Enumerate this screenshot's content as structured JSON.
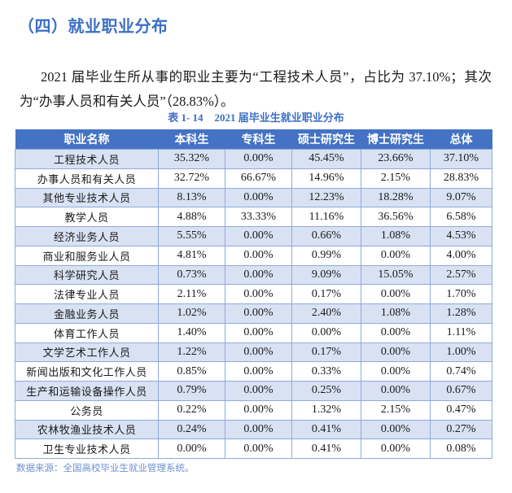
{
  "section": {
    "heading": "（四）就业职业分布"
  },
  "paragraph": {
    "text": "2021 届毕业生所从事的职业主要为“工程技术人员”，占比为 37.10%；其次为“办事人员和有关人员”（28.83%）。"
  },
  "table": {
    "caption_number": "表 1- 14",
    "caption_title": "2021 届毕业生就业职业分布",
    "columns": [
      "职业名称",
      "本科生",
      "专科生",
      "硕士研究生",
      "博士研究生",
      "总体"
    ],
    "rows": [
      [
        "工程技术人员",
        "35.32%",
        "0.00%",
        "45.45%",
        "23.66%",
        "37.10%"
      ],
      [
        "办事人员和有关人员",
        "32.72%",
        "66.67%",
        "14.96%",
        "2.15%",
        "28.83%"
      ],
      [
        "其他专业技术人员",
        "8.13%",
        "0.00%",
        "12.23%",
        "18.28%",
        "9.07%"
      ],
      [
        "教学人员",
        "4.88%",
        "33.33%",
        "11.16%",
        "36.56%",
        "6.58%"
      ],
      [
        "经济业务人员",
        "5.55%",
        "0.00%",
        "0.66%",
        "1.08%",
        "4.53%"
      ],
      [
        "商业和服务业人员",
        "4.81%",
        "0.00%",
        "0.99%",
        "0.00%",
        "4.00%"
      ],
      [
        "科学研究人员",
        "0.73%",
        "0.00%",
        "9.09%",
        "15.05%",
        "2.57%"
      ],
      [
        "法律专业人员",
        "2.11%",
        "0.00%",
        "0.17%",
        "0.00%",
        "1.70%"
      ],
      [
        "金融业务人员",
        "1.02%",
        "0.00%",
        "2.40%",
        "1.08%",
        "1.28%"
      ],
      [
        "体育工作人员",
        "1.40%",
        "0.00%",
        "0.00%",
        "0.00%",
        "1.11%"
      ],
      [
        "文学艺术工作人员",
        "1.22%",
        "0.00%",
        "0.17%",
        "0.00%",
        "1.00%"
      ],
      [
        "新闻出版和文化工作人员",
        "0.85%",
        "0.00%",
        "0.33%",
        "0.00%",
        "0.74%"
      ],
      [
        "生产和运输设备操作人员",
        "0.79%",
        "0.00%",
        "0.25%",
        "0.00%",
        "0.67%"
      ],
      [
        "公务员",
        "0.22%",
        "0.00%",
        "1.32%",
        "2.15%",
        "0.47%"
      ],
      [
        "农林牧渔业技术人员",
        "0.24%",
        "0.00%",
        "0.41%",
        "0.00%",
        "0.27%"
      ],
      [
        "卫生专业技术人员",
        "0.00%",
        "0.00%",
        "0.41%",
        "0.00%",
        "0.08%"
      ]
    ]
  },
  "source_note": "数据来源：全国高校毕业生就业管理系统。",
  "colors": {
    "heading_blue": "#3d6fc5",
    "header_bg": "#4472c4",
    "row_stripe": "#d9e2f3",
    "border": "#8eaadb",
    "source_text": "#6f8fcf"
  }
}
